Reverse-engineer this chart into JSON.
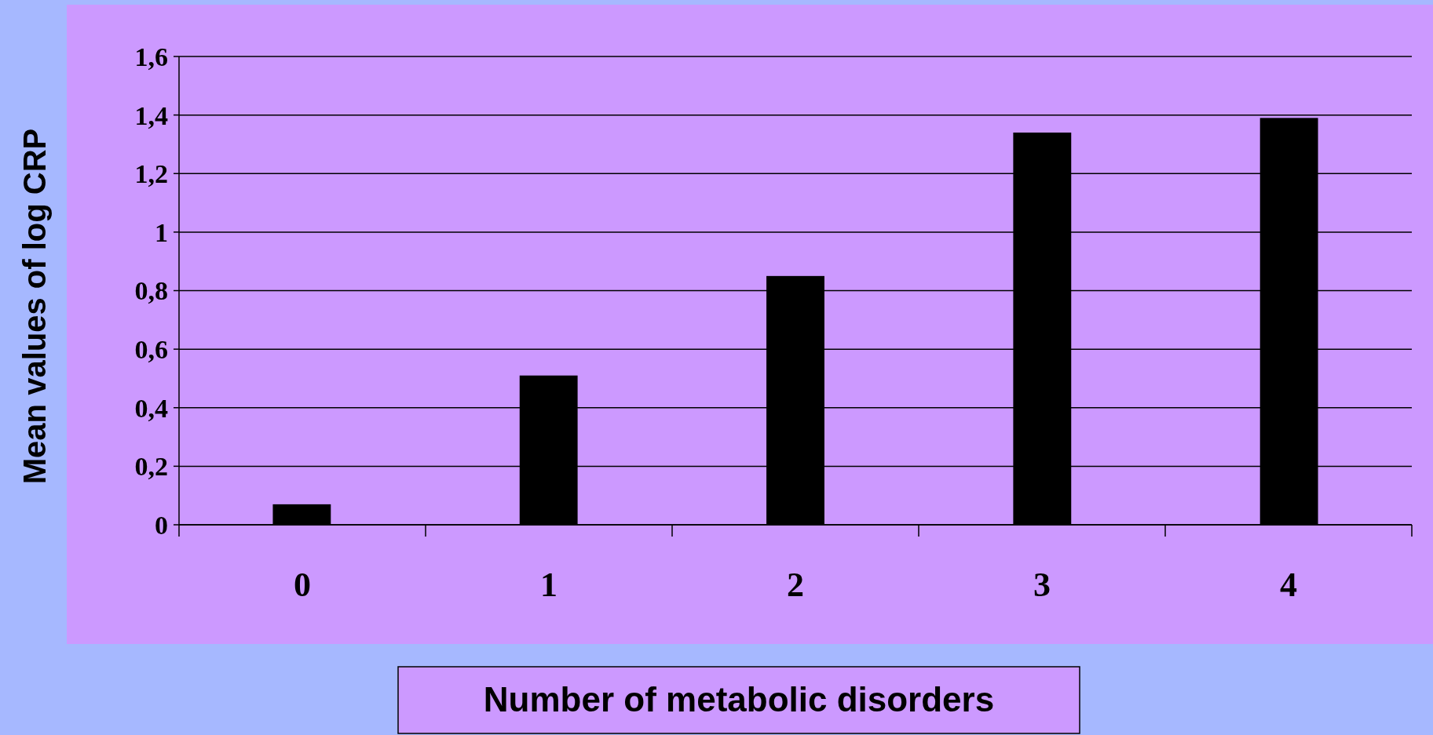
{
  "chart_data": {
    "type": "bar",
    "xlabel": "Number of metabolic disorders",
    "ylabel": "Mean values of log CRP",
    "categories": [
      "0",
      "1",
      "2",
      "3",
      "4"
    ],
    "values": [
      0.07,
      0.51,
      0.85,
      1.34,
      1.39
    ],
    "color": "#000000",
    "ylim": [
      0,
      1.6
    ],
    "yticks": [
      0,
      {
        "value": 0.2,
        "label": "0,2"
      },
      {
        "value": 0.4,
        "label": "0,4"
      },
      {
        "value": 0.6,
        "label": "0,6"
      },
      {
        "value": 0.8,
        "label": "0,8"
      },
      1,
      {
        "value": 1.2,
        "label": "1,2"
      },
      {
        "value": 1.4,
        "label": "1,4"
      },
      {
        "value": 1.6,
        "label": "1,6"
      }
    ],
    "grid": "y"
  }
}
